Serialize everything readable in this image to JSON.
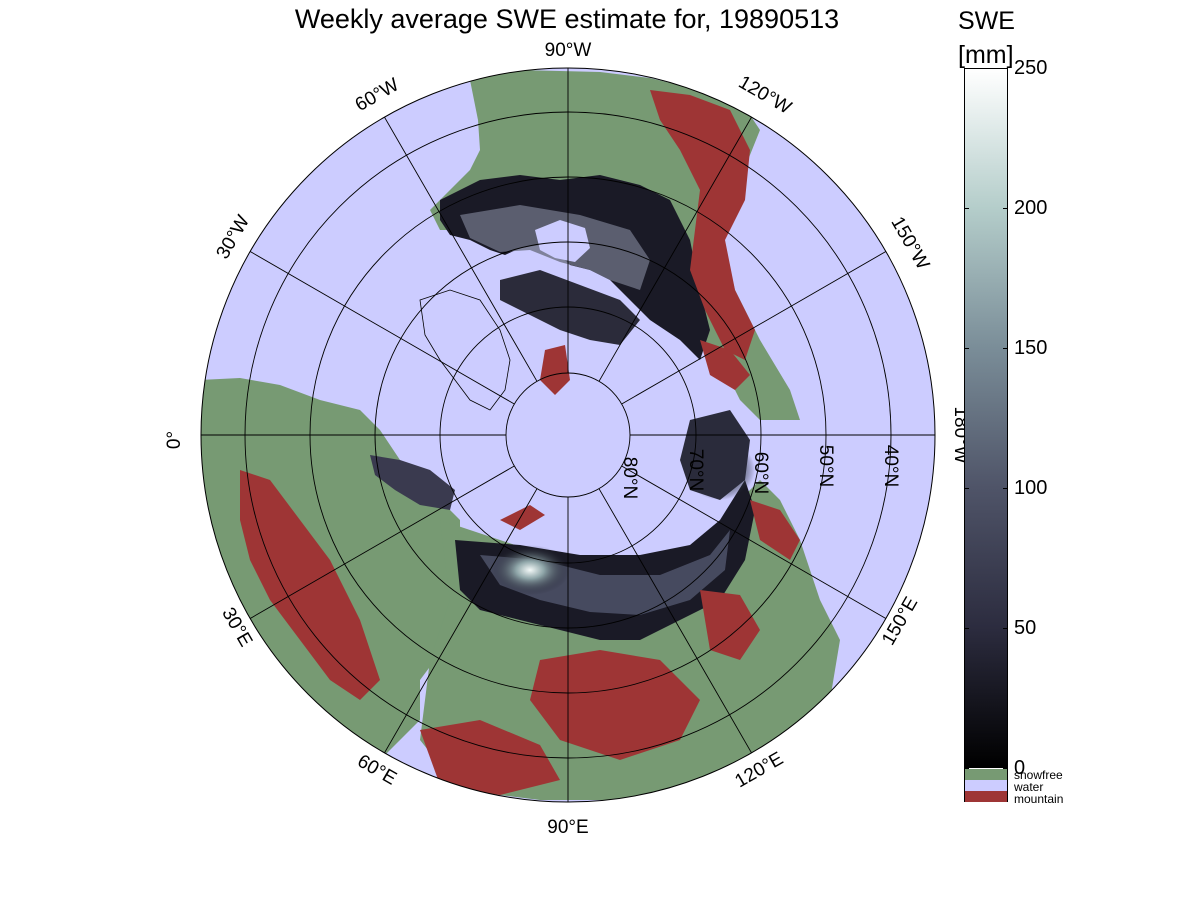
{
  "title": "Weekly average SWE estimate for, 19890513",
  "colorbar": {
    "title": "SWE",
    "unit": "[mm]",
    "ticks": [
      "250",
      "200",
      "150",
      "100",
      "50",
      "0"
    ],
    "tick_values": [
      250,
      200,
      150,
      100,
      50,
      0
    ],
    "range": [
      0,
      250
    ]
  },
  "categories": [
    {
      "name": "snowfree",
      "color": "#779A73"
    },
    {
      "name": "water",
      "color": "#CCCCFF"
    },
    {
      "name": "mountain",
      "color": "#9E3535"
    }
  ],
  "longitude_labels": [
    {
      "text": "90°W",
      "lon": -90
    },
    {
      "text": "120°W",
      "lon": -120
    },
    {
      "text": "150°W",
      "lon": -150
    },
    {
      "text": "180°W",
      "lon": 180
    },
    {
      "text": "150°E",
      "lon": 150
    },
    {
      "text": "120°E",
      "lon": 120
    },
    {
      "text": "90°E",
      "lon": 90
    },
    {
      "text": "60°E",
      "lon": 60
    },
    {
      "text": "30°E",
      "lon": 30
    },
    {
      "text": "0°",
      "lon": 0
    },
    {
      "text": "30°W",
      "lon": -30
    },
    {
      "text": "60°W",
      "lon": -60
    }
  ],
  "latitude_labels": [
    {
      "text": "80°N",
      "lat": 80
    },
    {
      "text": "70°N",
      "lat": 70
    },
    {
      "text": "60°N",
      "lat": 60
    },
    {
      "text": "50°N",
      "lat": 50
    },
    {
      "text": "40°N",
      "lat": 40
    }
  ],
  "colors": {
    "water": "#CCCCFF",
    "snowfree": "#779A73",
    "mountain": "#9E3535",
    "snow_low": "#0b0b12",
    "snow_high": "#f4f9f8"
  }
}
